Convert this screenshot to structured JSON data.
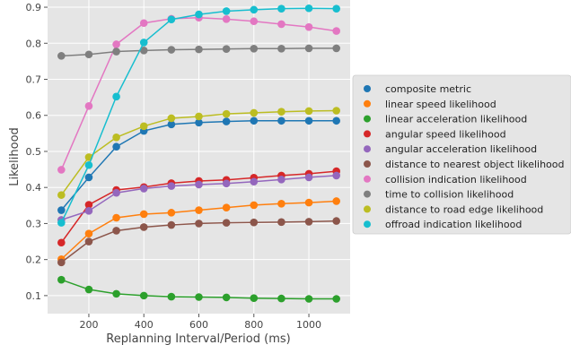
{
  "chart_data": {
    "type": "line",
    "title": "",
    "xlabel": "Replanning Interval/Period (ms)",
    "ylabel": "Likelihood",
    "x": [
      100,
      200,
      300,
      400,
      500,
      600,
      700,
      800,
      900,
      1000,
      1100
    ],
    "xlim": [
      50,
      1150
    ],
    "ylim": [
      0.05,
      0.92
    ],
    "xticks": [
      200,
      400,
      600,
      800,
      1000
    ],
    "yticks": [
      0.1,
      0.2,
      0.3,
      0.4,
      0.5,
      0.6,
      0.7,
      0.8,
      0.9
    ],
    "grid": true,
    "legend_position": "right",
    "series": [
      {
        "name": "composite metric",
        "color": "#1f77b4",
        "values": [
          0.337,
          0.428,
          0.513,
          0.557,
          0.575,
          0.58,
          0.583,
          0.585,
          0.585,
          0.585,
          0.585
        ]
      },
      {
        "name": "linear speed likelihood",
        "color": "#ff7f0e",
        "values": [
          0.201,
          0.272,
          0.316,
          0.326,
          0.33,
          0.337,
          0.344,
          0.351,
          0.355,
          0.358,
          0.362
        ]
      },
      {
        "name": "linear acceleration likelihood",
        "color": "#2ca02c",
        "values": [
          0.144,
          0.117,
          0.105,
          0.1,
          0.097,
          0.096,
          0.095,
          0.093,
          0.092,
          0.091,
          0.091
        ]
      },
      {
        "name": "angular speed likelihood",
        "color": "#d62728",
        "values": [
          0.247,
          0.352,
          0.393,
          0.401,
          0.412,
          0.418,
          0.421,
          0.427,
          0.433,
          0.438,
          0.445
        ]
      },
      {
        "name": "angular acceleration likelihood",
        "color": "#9467bd",
        "values": [
          0.31,
          0.335,
          0.385,
          0.397,
          0.404,
          0.408,
          0.411,
          0.416,
          0.422,
          0.428,
          0.433
        ]
      },
      {
        "name": "distance to nearest object likelihood",
        "color": "#8c564b",
        "values": [
          0.192,
          0.25,
          0.28,
          0.29,
          0.296,
          0.3,
          0.302,
          0.303,
          0.304,
          0.305,
          0.307
        ]
      },
      {
        "name": "collision indication likelihood",
        "color": "#e377c2",
        "values": [
          0.449,
          0.626,
          0.797,
          0.856,
          0.868,
          0.871,
          0.867,
          0.861,
          0.853,
          0.845,
          0.834
        ]
      },
      {
        "name": "time to collision likelihood",
        "color": "#7f7f7f",
        "values": [
          0.765,
          0.769,
          0.777,
          0.78,
          0.782,
          0.783,
          0.784,
          0.785,
          0.785,
          0.786,
          0.786
        ]
      },
      {
        "name": "distance to road edge likelihood",
        "color": "#bcbd22",
        "values": [
          0.379,
          0.484,
          0.539,
          0.57,
          0.592,
          0.597,
          0.604,
          0.607,
          0.61,
          0.612,
          0.613
        ]
      },
      {
        "name": "offroad indication likelihood",
        "color": "#17becf",
        "values": [
          0.302,
          0.462,
          0.652,
          0.802,
          0.866,
          0.88,
          0.889,
          0.893,
          0.896,
          0.897,
          0.896
        ]
      }
    ]
  }
}
